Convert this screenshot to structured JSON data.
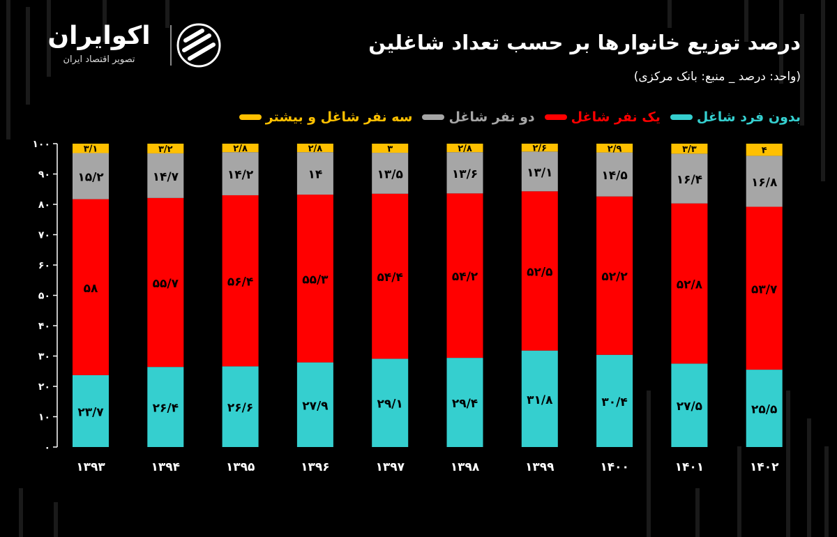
{
  "brand": {
    "name": "اکوایران",
    "tagline": "تصویر اقتصاد ایران"
  },
  "header": {
    "title": "درصد توزیع خانوارها بر حسب تعداد شاغلین",
    "subtitle": "(واحد: درصد _ منبع: بانک مرکزی)"
  },
  "colors": {
    "none": "#35cfcf",
    "one": "#ff0000",
    "two": "#a6a6a6",
    "three": "#ffc000",
    "background": "#000000"
  },
  "chart_data": {
    "type": "bar",
    "stacked": true,
    "title": "درصد توزیع خانوارها بر حسب تعداد شاغلین",
    "categories": [
      "۱۳۹۳",
      "۱۳۹۴",
      "۱۳۹۵",
      "۱۳۹۶",
      "۱۳۹۷",
      "۱۳۹۸",
      "۱۳۹۹",
      "۱۴۰۰",
      "۱۴۰۱",
      "۱۴۰۲"
    ],
    "ylim": [
      0,
      100
    ],
    "yticks": [
      0,
      10,
      20,
      30,
      40,
      50,
      60,
      70,
      80,
      90,
      100
    ],
    "ytick_labels": [
      "۰",
      "۱۰",
      "۲۰",
      "۳۰",
      "۴۰",
      "۵۰",
      "۶۰",
      "۷۰",
      "۸۰",
      "۹۰",
      "۱۰۰"
    ],
    "legend_position": "top-right",
    "series": [
      {
        "key": "none",
        "name": "بدون فرد شاغل",
        "values": [
          23.7,
          26.4,
          26.6,
          27.9,
          29.1,
          29.4,
          31.8,
          30.4,
          27.5,
          25.5
        ],
        "labels": [
          "۲۳/۷",
          "۲۶/۴",
          "۲۶/۶",
          "۲۷/۹",
          "۲۹/۱",
          "۲۹/۴",
          "۳۱/۸",
          "۳۰/۴",
          "۲۷/۵",
          "۲۵/۵"
        ]
      },
      {
        "key": "one",
        "name": "یک نفر شاغل",
        "values": [
          58,
          55.7,
          56.4,
          55.3,
          54.4,
          54.2,
          52.5,
          52.2,
          52.8,
          53.7
        ],
        "labels": [
          "۵۸",
          "۵۵/۷",
          "۵۶/۴",
          "۵۵/۳",
          "۵۴/۴",
          "۵۴/۲",
          "۵۲/۵",
          "۵۲/۲",
          "۵۲/۸",
          "۵۳/۷"
        ]
      },
      {
        "key": "two",
        "name": "دو نفر شاغل",
        "values": [
          15.2,
          14.7,
          14.2,
          14,
          13.5,
          13.6,
          13.1,
          14.5,
          16.4,
          16.8
        ],
        "labels": [
          "۱۵/۲",
          "۱۴/۷",
          "۱۴/۲",
          "۱۴",
          "۱۳/۵",
          "۱۳/۶",
          "۱۳/۱",
          "۱۴/۵",
          "۱۶/۴",
          "۱۶/۸"
        ]
      },
      {
        "key": "three",
        "name": "سه نفر شاغل و بیشتر",
        "values": [
          3.1,
          3.2,
          2.8,
          2.8,
          3,
          2.8,
          2.6,
          2.9,
          3.3,
          4
        ],
        "labels": [
          "۳/۱",
          "۳/۲",
          "۲/۸",
          "۲/۸",
          "۳",
          "۲/۸",
          "۲/۶",
          "۲/۹",
          "۳/۳",
          "۴"
        ]
      }
    ]
  }
}
